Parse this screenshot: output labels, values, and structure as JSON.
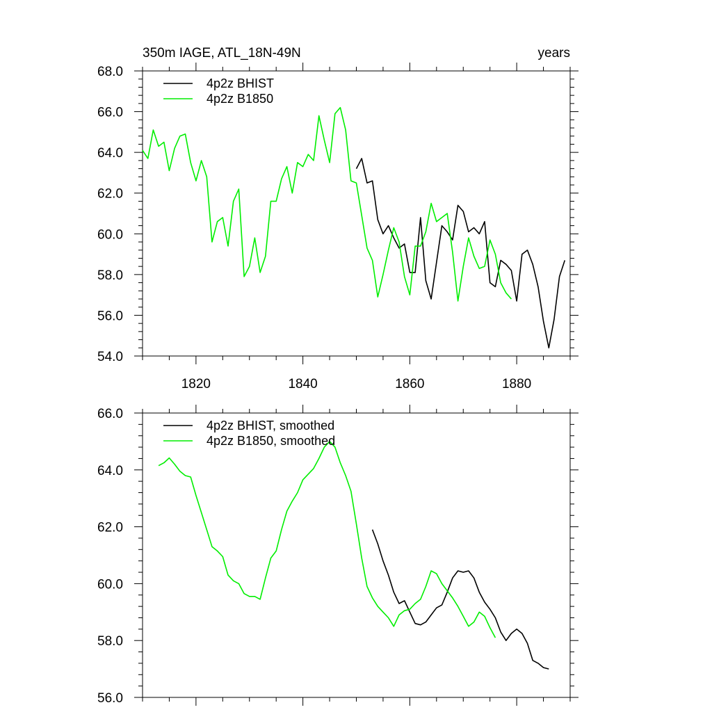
{
  "chart_data": [
    {
      "type": "line",
      "title": "350m IAGE, ATL_18N-49N",
      "units_label": "years",
      "xlim": [
        1810,
        1890
      ],
      "ylim": [
        54,
        68
      ],
      "x_ticks": [
        1820,
        1840,
        1860,
        1880
      ],
      "x_tick_labels": [
        "1820",
        "1840",
        "1860",
        "1880"
      ],
      "y_ticks": [
        54,
        56,
        58,
        60,
        62,
        64,
        66,
        68
      ],
      "y_tick_labels": [
        "54.0",
        "56.0",
        "58.0",
        "60.0",
        "62.0",
        "64.0",
        "66.0",
        "68.0"
      ],
      "legend_position": "top-left",
      "series": [
        {
          "name": "4p2z BHIST",
          "color": "#000000",
          "x": [
            1850,
            1851,
            1852,
            1853,
            1854,
            1855,
            1856,
            1857,
            1858,
            1859,
            1860,
            1861,
            1862,
            1863,
            1864,
            1865,
            1866,
            1867,
            1868,
            1869,
            1870,
            1871,
            1872,
            1873,
            1874,
            1875,
            1876,
            1877,
            1878,
            1879,
            1880,
            1881,
            1882,
            1883,
            1884,
            1885,
            1886,
            1887,
            1888,
            1889
          ],
          "values": [
            63.2,
            63.7,
            62.5,
            62.6,
            60.7,
            60.0,
            60.4,
            59.8,
            59.3,
            59.5,
            58.1,
            58.1,
            60.8,
            57.7,
            56.8,
            58.6,
            60.4,
            60.1,
            59.7,
            61.4,
            61.1,
            60.1,
            60.3,
            60.0,
            60.6,
            57.6,
            57.4,
            58.7,
            58.5,
            58.2,
            56.7,
            59.0,
            59.2,
            58.5,
            57.4,
            55.7,
            54.4,
            55.8,
            57.9,
            58.7
          ]
        },
        {
          "name": "4p2z B1850",
          "color": "#00ee00",
          "x": [
            1810,
            1811,
            1812,
            1813,
            1814,
            1815,
            1816,
            1817,
            1818,
            1819,
            1820,
            1821,
            1822,
            1823,
            1824,
            1825,
            1826,
            1827,
            1828,
            1829,
            1830,
            1831,
            1832,
            1833,
            1834,
            1835,
            1836,
            1837,
            1838,
            1839,
            1840,
            1841,
            1842,
            1843,
            1844,
            1845,
            1846,
            1847,
            1848,
            1849,
            1850,
            1851,
            1852,
            1853,
            1854,
            1855,
            1856,
            1857,
            1858,
            1859,
            1860,
            1861,
            1862,
            1863,
            1864,
            1865,
            1866,
            1867,
            1868,
            1869,
            1870,
            1871,
            1872,
            1873,
            1874,
            1875,
            1876,
            1877,
            1878,
            1879
          ],
          "values": [
            64.1,
            63.7,
            65.1,
            64.3,
            64.5,
            63.1,
            64.2,
            64.8,
            64.9,
            63.5,
            62.6,
            63.6,
            62.8,
            59.6,
            60.6,
            60.8,
            59.4,
            61.6,
            62.2,
            57.9,
            58.4,
            59.8,
            58.1,
            58.9,
            61.6,
            61.6,
            62.7,
            63.3,
            62.0,
            63.5,
            63.3,
            63.9,
            63.6,
            65.8,
            64.6,
            63.5,
            65.9,
            66.2,
            65.1,
            62.6,
            62.5,
            60.9,
            59.3,
            58.7,
            56.9,
            58.0,
            59.2,
            60.3,
            59.6,
            57.9,
            57.0,
            59.4,
            59.4,
            60.1,
            61.5,
            60.6,
            60.8,
            61.0,
            59.1,
            56.7,
            58.4,
            59.8,
            58.9,
            58.3,
            58.4,
            59.7,
            59.0,
            57.6,
            57.1,
            56.8
          ]
        }
      ]
    },
    {
      "type": "line",
      "title": "",
      "xlim": [
        1810,
        1890
      ],
      "ylim": [
        56,
        66
      ],
      "x_ticks": [
        1820,
        1840,
        1860,
        1880
      ],
      "y_ticks": [
        56,
        58,
        60,
        62,
        64,
        66
      ],
      "y_tick_labels": [
        "56.0",
        "58.0",
        "60.0",
        "62.0",
        "64.0",
        "66.0"
      ],
      "legend_position": "top-left",
      "series": [
        {
          "name": "4p2z BHIST, smoothed",
          "color": "#000000",
          "x": [
            1853,
            1854,
            1855,
            1856,
            1857,
            1858,
            1859,
            1860,
            1861,
            1862,
            1863,
            1864,
            1865,
            1866,
            1867,
            1868,
            1869,
            1870,
            1871,
            1872,
            1873,
            1874,
            1875,
            1876,
            1877,
            1878,
            1879,
            1880,
            1881,
            1882,
            1883,
            1884,
            1885,
            1886
          ],
          "values": [
            61.9,
            61.4,
            60.8,
            60.3,
            59.7,
            59.3,
            59.4,
            59.0,
            58.6,
            58.55,
            58.65,
            58.9,
            59.15,
            59.25,
            59.7,
            60.2,
            60.45,
            60.4,
            60.45,
            60.2,
            59.7,
            59.35,
            59.1,
            58.8,
            58.3,
            58.0,
            58.25,
            58.4,
            58.25,
            57.9,
            57.3,
            57.2,
            57.05,
            57.0
          ]
        },
        {
          "name": "4p2z B1850, smoothed",
          "color": "#00ee00",
          "x": [
            1813,
            1814,
            1815,
            1816,
            1817,
            1818,
            1819,
            1820,
            1821,
            1822,
            1823,
            1824,
            1825,
            1826,
            1827,
            1828,
            1829,
            1830,
            1831,
            1832,
            1833,
            1834,
            1835,
            1836,
            1837,
            1838,
            1839,
            1840,
            1841,
            1842,
            1843,
            1844,
            1845,
            1846,
            1847,
            1848,
            1849,
            1850,
            1851,
            1852,
            1853,
            1854,
            1855,
            1856,
            1857,
            1858,
            1859,
            1860,
            1861,
            1862,
            1863,
            1864,
            1865,
            1866,
            1867,
            1868,
            1869,
            1870,
            1871,
            1872,
            1873,
            1874,
            1875,
            1876
          ],
          "values": [
            64.15,
            64.25,
            64.42,
            64.2,
            63.95,
            63.8,
            63.75,
            63.1,
            62.5,
            61.9,
            61.3,
            61.15,
            60.95,
            60.3,
            60.1,
            60.0,
            59.65,
            59.55,
            59.55,
            59.45,
            60.2,
            60.9,
            61.15,
            61.9,
            62.55,
            62.9,
            63.2,
            63.65,
            63.85,
            64.05,
            64.4,
            64.8,
            65.0,
            64.8,
            64.25,
            63.8,
            63.25,
            62.1,
            60.9,
            59.9,
            59.5,
            59.2,
            59.0,
            58.8,
            58.5,
            58.9,
            59.05,
            59.1,
            59.3,
            59.45,
            59.9,
            60.45,
            60.35,
            60.0,
            59.75,
            59.5,
            59.2,
            58.85,
            58.5,
            58.65,
            59.0,
            58.85,
            58.45,
            58.1
          ]
        }
      ]
    }
  ]
}
